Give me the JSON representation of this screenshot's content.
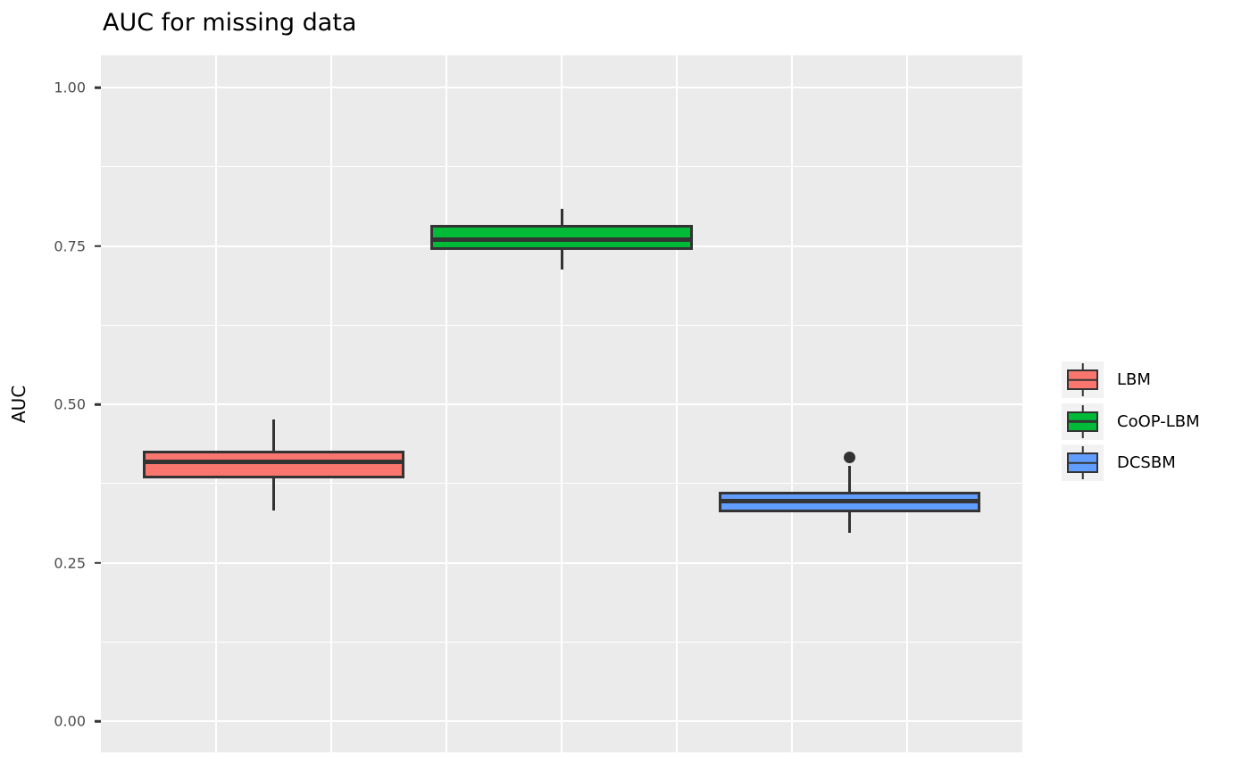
{
  "title": "AUC for missing data",
  "y_axis": {
    "label": "AUC",
    "ticks": [
      {
        "label": "1.00",
        "value": 1.0
      },
      {
        "label": "0.75",
        "value": 0.75
      },
      {
        "label": "0.50",
        "value": 0.5
      },
      {
        "label": "0.25",
        "value": 0.25
      },
      {
        "label": "0.00",
        "value": 0.0
      }
    ]
  },
  "legend": {
    "items": [
      {
        "label": "LBM",
        "color": "#F8766D"
      },
      {
        "label": "CoOP-LBM",
        "color": "#00BA38"
      },
      {
        "label": "DCSBM",
        "color": "#619CFF"
      }
    ]
  },
  "colors": {
    "panel_background": "#EBEBEB",
    "gridline": "#FFFFFF",
    "box_outline": "#333333",
    "tick_text": "#4D4D4D",
    "legend_key_background": "#F2F2F2"
  },
  "chart_data": {
    "type": "boxplot",
    "title": "AUC for missing data",
    "xlabel": "",
    "ylabel": "AUC",
    "categories": [
      "LBM",
      "CoOP-LBM",
      "DCSBM"
    ],
    "series": [
      {
        "name": "LBM",
        "color": "#F8766D",
        "whisker_low": 0.333,
        "q1": 0.383,
        "median": 0.41,
        "q3": 0.427,
        "whisker_high": 0.476,
        "outliers": []
      },
      {
        "name": "CoOP-LBM",
        "color": "#00BA38",
        "whisker_low": 0.713,
        "q1": 0.744,
        "median": 0.76,
        "q3": 0.784,
        "whisker_high": 0.809,
        "outliers": []
      },
      {
        "name": "DCSBM",
        "color": "#619CFF",
        "whisker_low": 0.297,
        "q1": 0.33,
        "median": 0.348,
        "q3": 0.362,
        "whisker_high": 0.403,
        "outliers": [
          0.417
        ]
      }
    ],
    "x_positions": [
      1,
      2,
      3
    ],
    "xlim": [
      0.4,
      3.6
    ],
    "box_width": 0.91,
    "ylim": [
      -0.049,
      1.051
    ],
    "y_major_ticks": [
      0.0,
      0.25,
      0.5,
      0.75,
      1.0
    ],
    "y_minor_ticks": [
      0.125,
      0.375,
      0.625,
      0.875
    ],
    "x_gridlines": [
      0.8,
      1.2,
      1.6,
      2.0,
      2.4,
      2.8,
      3.2
    ],
    "grid": true,
    "legend_position": "right"
  }
}
